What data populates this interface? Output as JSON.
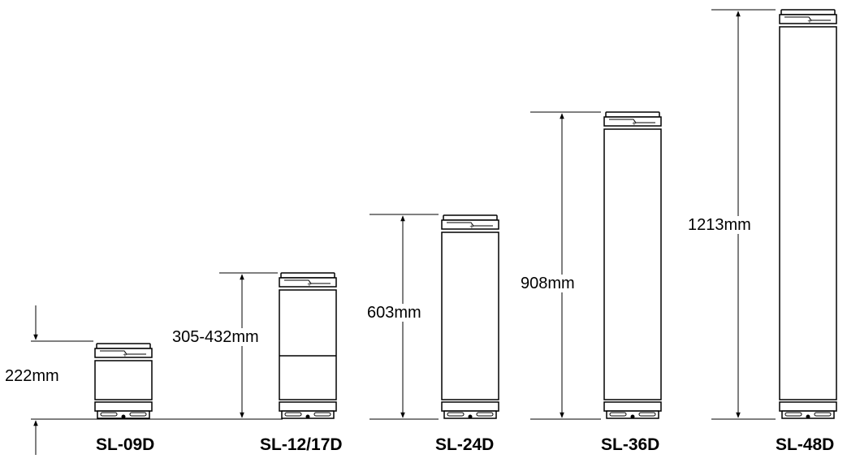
{
  "diagram": {
    "models": [
      {
        "name": "SL-09D",
        "dimension": "222mm"
      },
      {
        "name": "SL-12/17D",
        "dimension": "305-432mm"
      },
      {
        "name": "SL-24D",
        "dimension": "603mm"
      },
      {
        "name": "SL-36D",
        "dimension": "908mm"
      },
      {
        "name": "SL-48D",
        "dimension": "1213mm"
      }
    ]
  }
}
